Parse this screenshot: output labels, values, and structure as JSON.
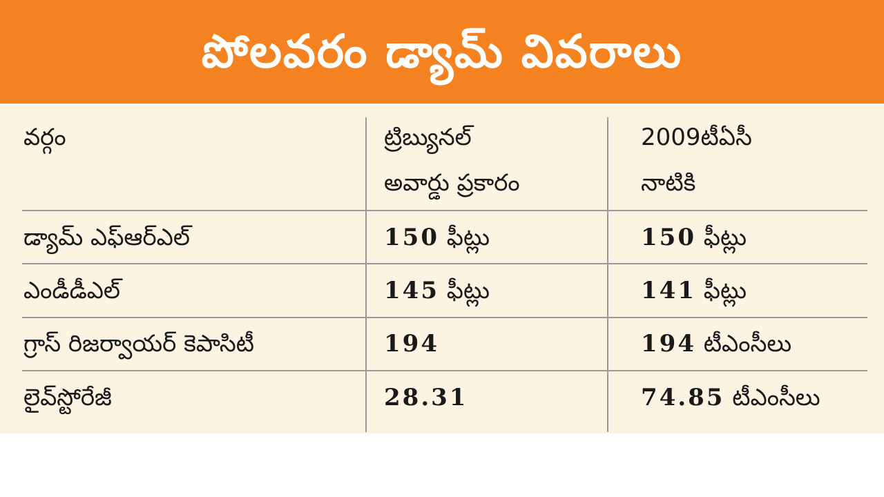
{
  "title": "పోలవరం డ్యామ్ వివరాలు",
  "colors": {
    "header_bg": "#f58220",
    "table_bg": "#fdf3e3",
    "text": "#1a1a1a",
    "rule": "#9a9a9a"
  },
  "table": {
    "headers": [
      "వర్గం",
      "ట్రిబ్యునల్ అవార్డు ప్రకారం",
      "2009టీఏసీ నాటికి"
    ],
    "header_lines": {
      "col1": [
        "వర్గం"
      ],
      "col2": [
        "ట్రిబ్యునల్",
        "అవార్డు ప్రకారం"
      ],
      "col3": [
        "2009టీఏసీ",
        "నాటికి"
      ]
    },
    "rows": [
      {
        "category": "డ్యామ్ ఎఫ్ఆర్ఎల్",
        "tribunal_num": "150",
        "tribunal_unit": "ఫీట్లు",
        "tac_num": "150",
        "tac_unit": "ఫీట్లు"
      },
      {
        "category": "ఎండీడీఎల్",
        "tribunal_num": "145",
        "tribunal_unit": "ఫీట్లు",
        "tac_num": "141",
        "tac_unit": "ఫీట్లు"
      },
      {
        "category": "గ్రాస్ రిజర్వాయర్ కెపాసిటీ",
        "tribunal_num": "194",
        "tribunal_unit": "",
        "tac_num": "194",
        "tac_unit": "టీఎంసీలు"
      },
      {
        "category": "లైవ్‌స్టోరేజీ",
        "tribunal_num": "28.31",
        "tribunal_unit": "",
        "tac_num": "74.85",
        "tac_unit": "టీఎంసీలు"
      }
    ]
  }
}
